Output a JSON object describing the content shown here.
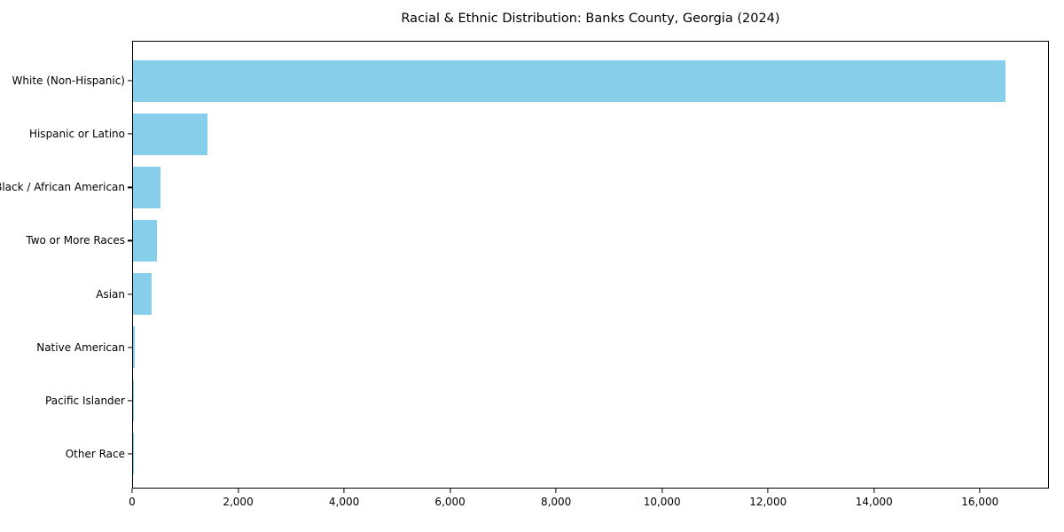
{
  "chart_data": {
    "type": "bar",
    "orientation": "horizontal",
    "title": "Racial & Ethnic Distribution: Banks County, Georgia (2024)",
    "categories": [
      "White (Non-Hispanic)",
      "Hispanic or Latino",
      "Black / African American",
      "Two or More Races",
      "Asian",
      "Native American",
      "Pacific Islander",
      "Other Race"
    ],
    "values": [
      16500,
      1400,
      520,
      460,
      360,
      35,
      10,
      15
    ],
    "xlabel": "",
    "ylabel": "",
    "xlim": [
      0,
      17300
    ],
    "x_ticks": [
      0,
      2000,
      4000,
      6000,
      8000,
      10000,
      12000,
      14000,
      16000
    ],
    "x_tick_labels": [
      "0",
      "2,000",
      "4,000",
      "6,000",
      "8,000",
      "10,000",
      "12,000",
      "14,000",
      "16,000"
    ],
    "bar_color": "#87CEEB",
    "background_color": "#FFFFFF",
    "grid": false,
    "legend": null
  }
}
